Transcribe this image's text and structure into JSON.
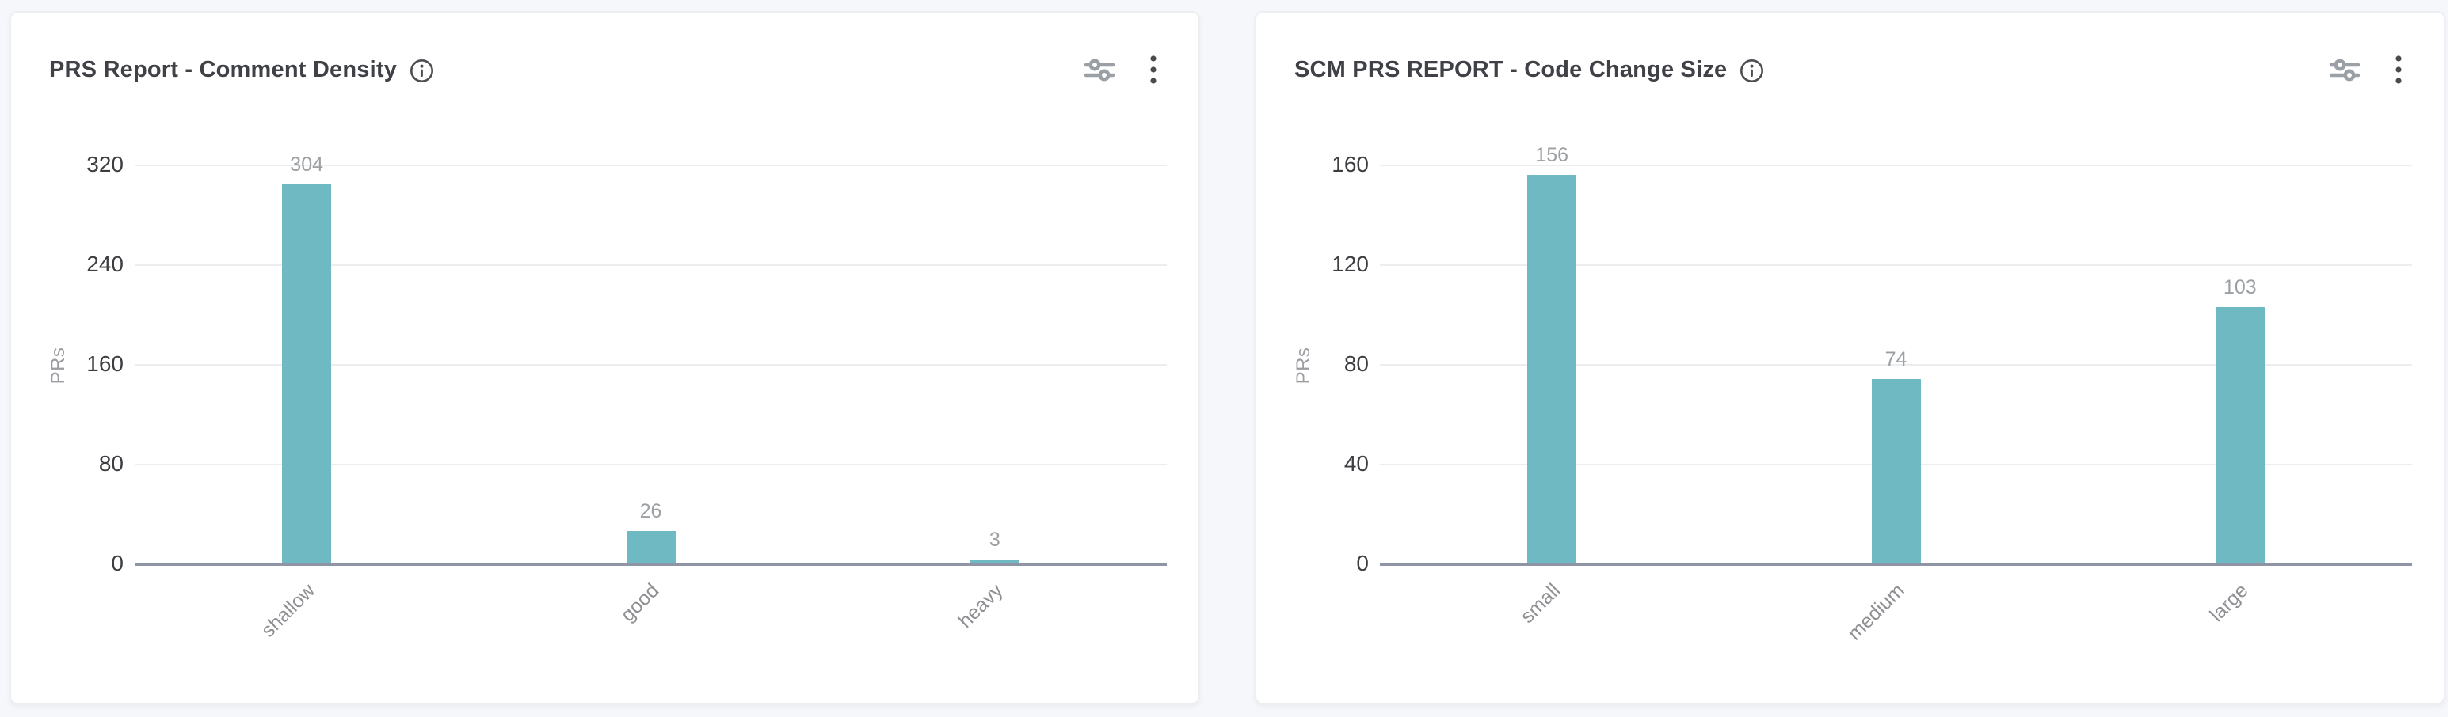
{
  "page": {
    "background_color": "#f5f7fb",
    "card_background": "#ffffff"
  },
  "cards": [
    {
      "title": "PRS Report - Comment Density",
      "title_icon": "info-circle-icon",
      "action_icons": [
        "filter-sliders-icon",
        "kebab-menu-icon"
      ]
    },
    {
      "title": "SCM PRS REPORT - Code Change Size",
      "title_icon": "info-circle-icon",
      "action_icons": [
        "filter-sliders-icon",
        "kebab-menu-icon"
      ]
    }
  ],
  "chart_data": [
    {
      "type": "bar",
      "title": "PRS Report - Comment Density",
      "categories": [
        "shallow",
        "good",
        "heavy"
      ],
      "values": [
        304,
        26,
        3
      ],
      "xlabel": "",
      "ylabel": "PRs",
      "ylim": [
        0,
        320
      ],
      "yticks": [
        0,
        80,
        160,
        240,
        320
      ],
      "bar_color": "#6fb9c3",
      "value_label_color": "#9da0a3",
      "grid": true,
      "legend": "none",
      "value_labels": true,
      "x_tick_rotation": 45
    },
    {
      "type": "bar",
      "title": "SCM PRS REPORT - Code Change Size",
      "categories": [
        "small",
        "medium",
        "large"
      ],
      "values": [
        156,
        74,
        103
      ],
      "xlabel": "",
      "ylabel": "PRs",
      "ylim": [
        0,
        160
      ],
      "yticks": [
        0,
        40,
        80,
        120,
        160
      ],
      "bar_color": "#6fb9c3",
      "value_label_color": "#9da0a3",
      "grid": true,
      "legend": "none",
      "value_labels": true,
      "x_tick_rotation": 45
    }
  ]
}
